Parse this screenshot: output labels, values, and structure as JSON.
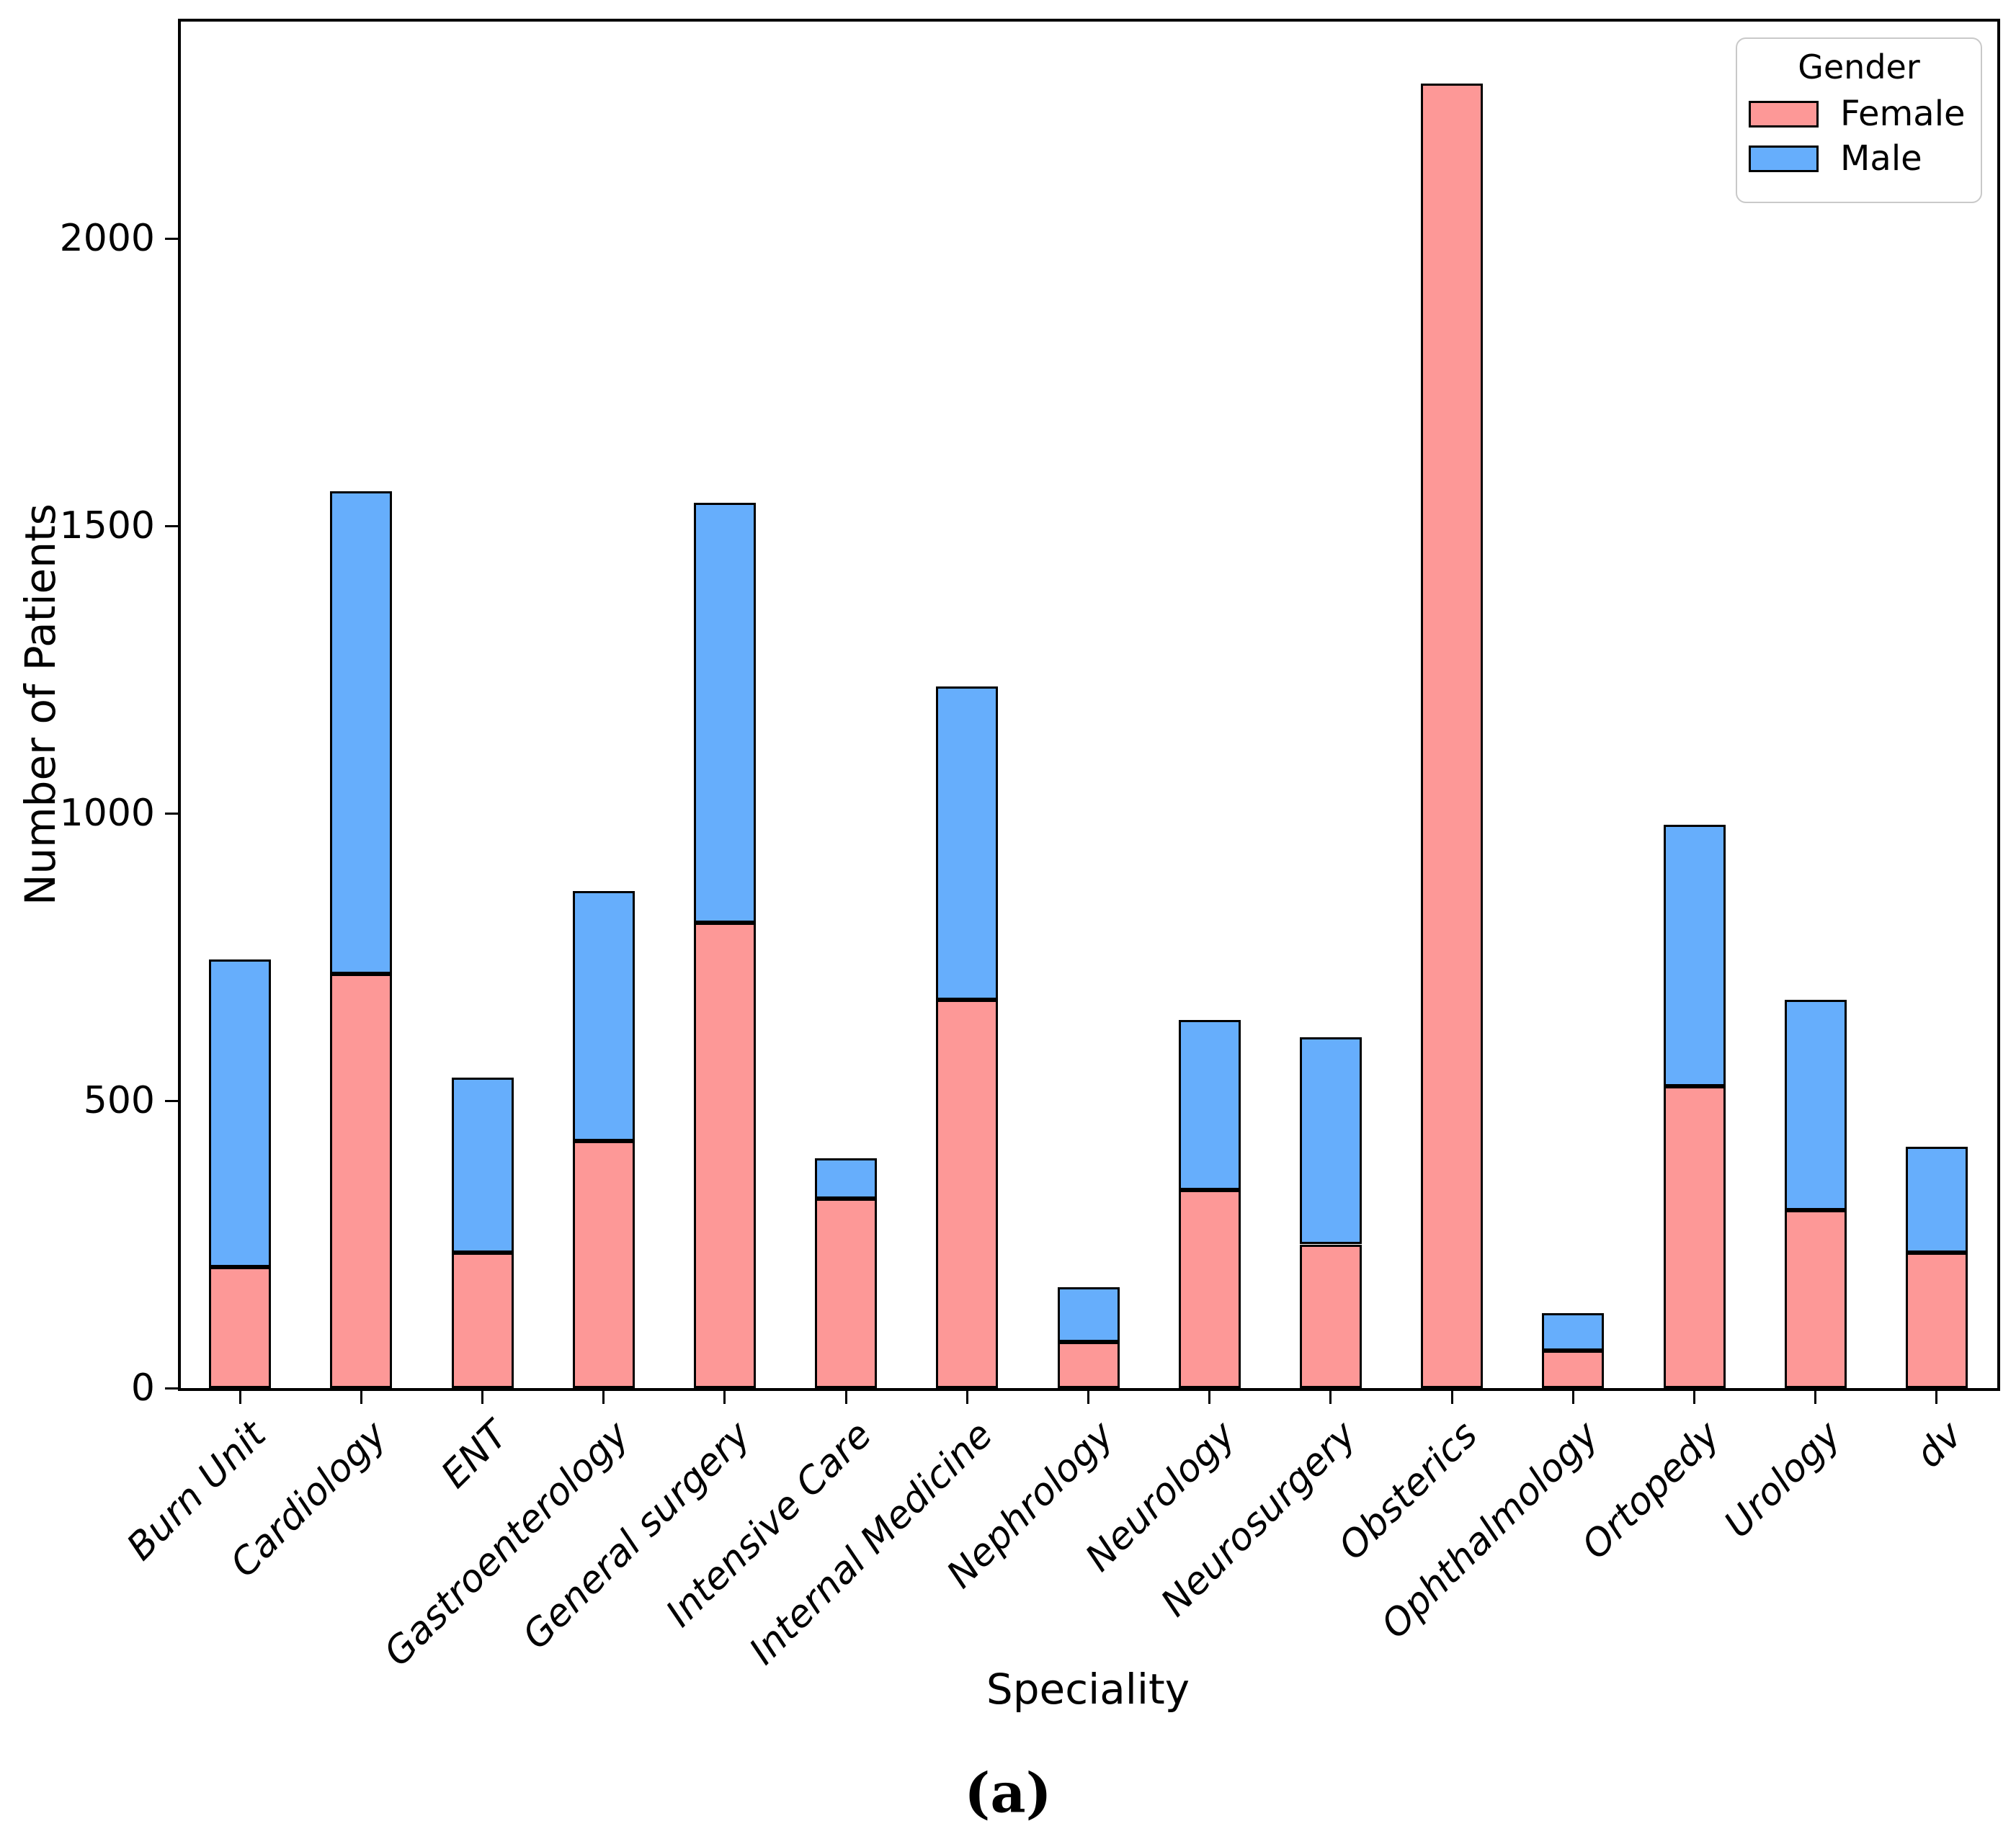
{
  "figure": {
    "caption": "(a)"
  },
  "chart_data": {
    "type": "bar",
    "stacked": true,
    "title": "",
    "xlabel": "Speciality",
    "ylabel": "Number of Patients",
    "categories": [
      "Burn Unit",
      "Cardiology",
      "ENT",
      "Gastroenterology",
      "General surgery",
      "Intensive Care",
      "Internal Medicine",
      "Nephrology",
      "Neurology",
      "Neurosurgery",
      "Obsterics",
      "Ophthalmology",
      "Ortopedy",
      "Urology",
      "dv"
    ],
    "series": [
      {
        "name": "Female",
        "color": "#fd9897",
        "values": [
          210,
          720,
          235,
          430,
          810,
          330,
          675,
          80,
          345,
          250,
          2270,
          65,
          525,
          310,
          235
        ]
      },
      {
        "name": "Male",
        "color": "#66aefc",
        "values": [
          535,
          840,
          305,
          435,
          730,
          70,
          545,
          95,
          295,
          360,
          0,
          65,
          455,
          365,
          185
        ]
      }
    ],
    "totals": [
      745,
      1560,
      540,
      865,
      1540,
      400,
      1220,
      175,
      640,
      610,
      2270,
      130,
      980,
      675,
      420
    ],
    "yticks": [
      0,
      500,
      1000,
      1500,
      2000
    ],
    "ylim": [
      0,
      2380
    ],
    "grid": false,
    "bar_edge_color": "#000000",
    "legend": {
      "title": "Gender",
      "position": "upper right"
    }
  }
}
